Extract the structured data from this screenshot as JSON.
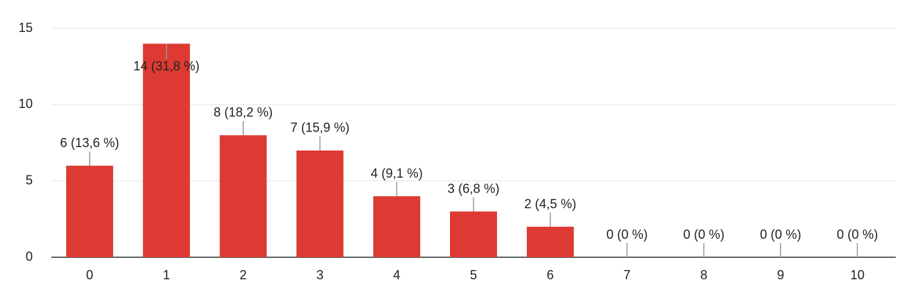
{
  "chart_data": {
    "type": "bar",
    "categories": [
      "0",
      "1",
      "2",
      "3",
      "4",
      "5",
      "6",
      "7",
      "8",
      "9",
      "10"
    ],
    "values": [
      6,
      14,
      8,
      7,
      4,
      3,
      2,
      0,
      0,
      0,
      0
    ],
    "value_labels": [
      "6 (13,6 %)",
      "14 (31,8 %)",
      "8 (18,2 %)",
      "7 (15,9 %)",
      "4 (9,1 %)",
      "3 (6,8 %)",
      "2 (4,5 %)",
      "0 (0 %)",
      "0 (0 %)",
      "0 (0 %)",
      "0 (0 %)"
    ],
    "color": "#dc3a32",
    "ylim": [
      0,
      15
    ],
    "yticks": [
      0,
      5,
      10,
      15
    ],
    "grid": true
  }
}
